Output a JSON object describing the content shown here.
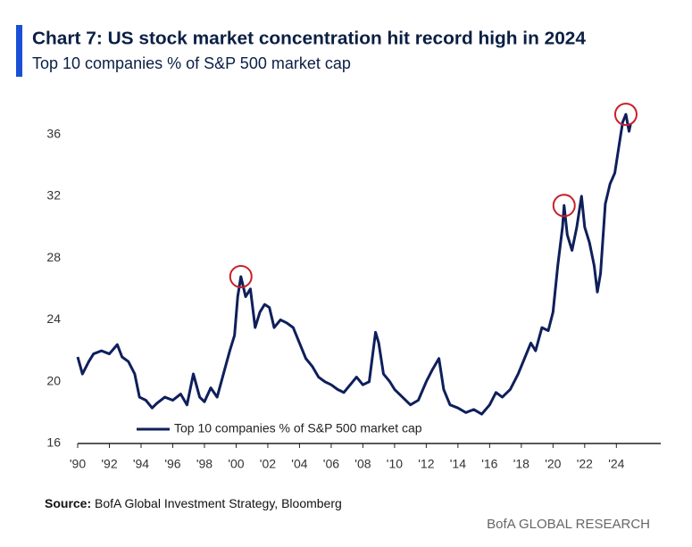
{
  "chart_data": {
    "type": "line",
    "title": "Chart 7: US stock market concentration hit record high in 2024",
    "subtitle": "Top 10 companies % of S&P 500 market cap",
    "source_label": "Source:",
    "source": "BofA Global Investment Strategy, Bloomberg",
    "footer": "BofA GLOBAL RESEARCH",
    "legend": "lower left",
    "grid": false,
    "xlim": [
      1990,
      2026.8
    ],
    "ylim": [
      16,
      38
    ],
    "yticks": [
      16,
      20,
      24,
      28,
      32,
      36
    ],
    "xticks": [
      {
        "value": 1990,
        "label": "'90"
      },
      {
        "value": 1992,
        "label": "'92"
      },
      {
        "value": 1994,
        "label": "'94"
      },
      {
        "value": 1996,
        "label": "'96"
      },
      {
        "value": 1998,
        "label": "'98"
      },
      {
        "value": 2000,
        "label": "'00"
      },
      {
        "value": 2002,
        "label": "'02"
      },
      {
        "value": 2004,
        "label": "'04"
      },
      {
        "value": 2006,
        "label": "'06"
      },
      {
        "value": 2008,
        "label": "'08"
      },
      {
        "value": 2010,
        "label": "'10"
      },
      {
        "value": 2012,
        "label": "'12"
      },
      {
        "value": 2014,
        "label": "'14"
      },
      {
        "value": 2016,
        "label": "'16"
      },
      {
        "value": 2018,
        "label": "'18"
      },
      {
        "value": 2020,
        "label": "'20"
      },
      {
        "value": 2022,
        "label": "'22"
      },
      {
        "value": 2024,
        "label": "'24"
      }
    ],
    "highlights": [
      {
        "x": 2000.3,
        "y": 26.8
      },
      {
        "x": 2020.7,
        "y": 31.4
      },
      {
        "x": 2024.6,
        "y": 37.3
      }
    ],
    "highlight_color": "#c8202a",
    "x": [
      1990.0,
      1990.3,
      1990.7,
      1991.0,
      1991.5,
      1992.0,
      1992.5,
      1992.8,
      1993.2,
      1993.6,
      1993.9,
      1994.3,
      1994.7,
      1995.0,
      1995.5,
      1996.0,
      1996.5,
      1996.9,
      1997.3,
      1997.7,
      1998.0,
      1998.4,
      1998.8,
      1999.2,
      1999.6,
      1999.9,
      2000.1,
      2000.3,
      2000.6,
      2000.9,
      2001.2,
      2001.5,
      2001.8,
      2002.1,
      2002.4,
      2002.8,
      2003.2,
      2003.6,
      2004.0,
      2004.4,
      2004.8,
      2005.2,
      2005.6,
      2006.0,
      2006.4,
      2006.8,
      2007.2,
      2007.6,
      2008.0,
      2008.4,
      2008.8,
      2009.0,
      2009.3,
      2009.7,
      2010.0,
      2010.5,
      2011.0,
      2011.5,
      2012.0,
      2012.4,
      2012.8,
      2013.1,
      2013.5,
      2014.0,
      2014.5,
      2015.0,
      2015.5,
      2016.0,
      2016.4,
      2016.8,
      2017.3,
      2017.8,
      2018.2,
      2018.6,
      2018.9,
      2019.3,
      2019.7,
      2020.0,
      2020.3,
      2020.6,
      2020.7,
      2020.9,
      2021.2,
      2021.5,
      2021.8,
      2022.0,
      2022.3,
      2022.6,
      2022.8,
      2023.0,
      2023.3,
      2023.6,
      2023.9,
      2024.2,
      2024.4,
      2024.6,
      2024.8,
      2024.9
    ],
    "series": [
      {
        "name": "Top 10 companies % of S&P 500 market cap",
        "color": "#0e1f5b",
        "values": [
          21.6,
          20.5,
          21.3,
          21.8,
          22.0,
          21.8,
          22.4,
          21.6,
          21.3,
          20.5,
          19.0,
          18.8,
          18.3,
          18.6,
          19.0,
          18.8,
          19.2,
          18.5,
          20.5,
          19.0,
          18.7,
          19.6,
          19.0,
          20.5,
          22.0,
          23.0,
          25.5,
          26.8,
          25.5,
          26.0,
          23.5,
          24.5,
          25.0,
          24.8,
          23.5,
          24.0,
          23.8,
          23.5,
          22.5,
          21.5,
          21.0,
          20.3,
          20.0,
          19.8,
          19.5,
          19.3,
          19.8,
          20.3,
          19.8,
          20.0,
          23.2,
          22.5,
          20.5,
          20.0,
          19.5,
          19.0,
          18.5,
          18.8,
          20.0,
          20.8,
          21.5,
          19.5,
          18.5,
          18.3,
          18.0,
          18.2,
          17.9,
          18.5,
          19.3,
          19.0,
          19.5,
          20.5,
          21.5,
          22.5,
          22.0,
          23.5,
          23.3,
          24.5,
          27.5,
          30.0,
          31.4,
          29.5,
          28.5,
          30.0,
          32.0,
          30.0,
          29.0,
          27.5,
          25.8,
          27.0,
          31.5,
          32.8,
          33.5,
          35.5,
          36.8,
          37.3,
          36.2,
          36.7
        ]
      }
    ]
  }
}
